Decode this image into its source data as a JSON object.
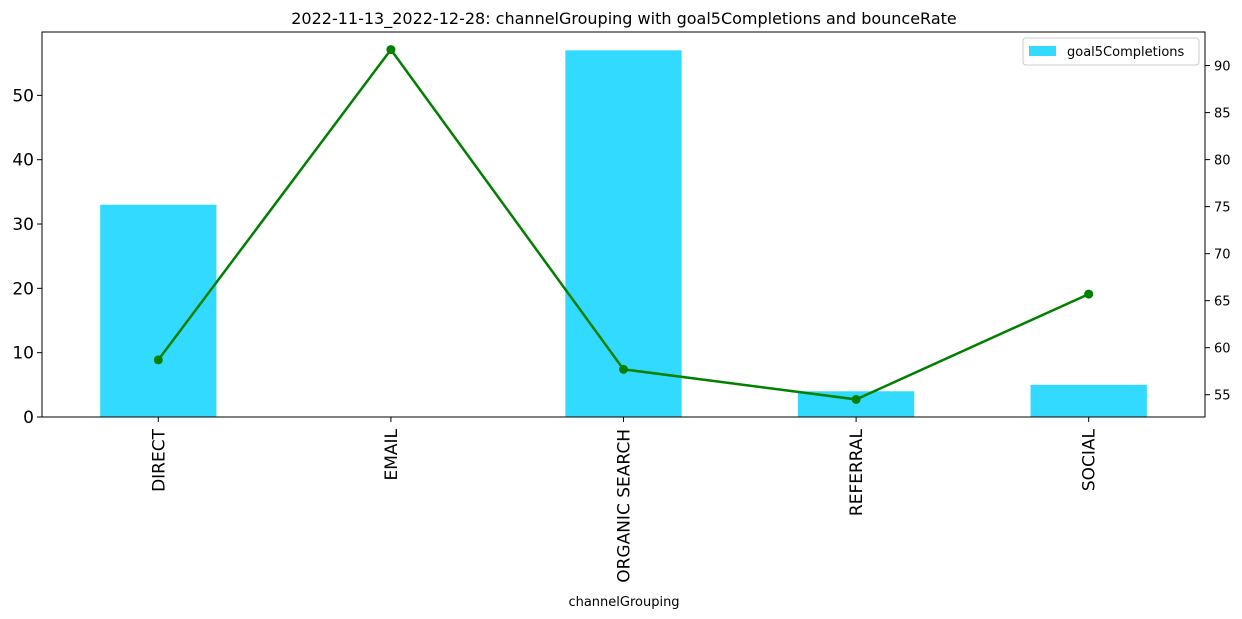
{
  "chart_data": {
    "type": "bar+line",
    "title": "2022-11-13_2022-12-28: channelGrouping with goal5Completions and bounceRate",
    "xlabel": "channelGrouping",
    "categories": [
      "DIRECT",
      "EMAIL",
      "ORGANIC SEARCH",
      "REFERRAL",
      "SOCIAL"
    ],
    "series": [
      {
        "name": "goal5Completions",
        "type": "bar",
        "axis": "left",
        "color": "#33daff",
        "values": [
          33,
          0,
          57,
          4,
          5
        ]
      },
      {
        "type": "line",
        "axis": "right",
        "color": "#008000",
        "values": [
          58.7,
          91.7,
          57.7,
          54.5,
          65.7
        ]
      }
    ],
    "y_left": {
      "lim": [
        0,
        59.85
      ],
      "ticks": [
        "0",
        "10",
        "20",
        "30",
        "40",
        "50"
      ]
    },
    "y_right": {
      "lim": [
        52.63,
        93.57
      ],
      "ticks": [
        "55",
        "60",
        "65",
        "70",
        "75",
        "80",
        "85",
        "90"
      ]
    },
    "legend": {
      "position": "top-right",
      "entries": [
        "goal5Completions"
      ]
    },
    "grid": false
  }
}
